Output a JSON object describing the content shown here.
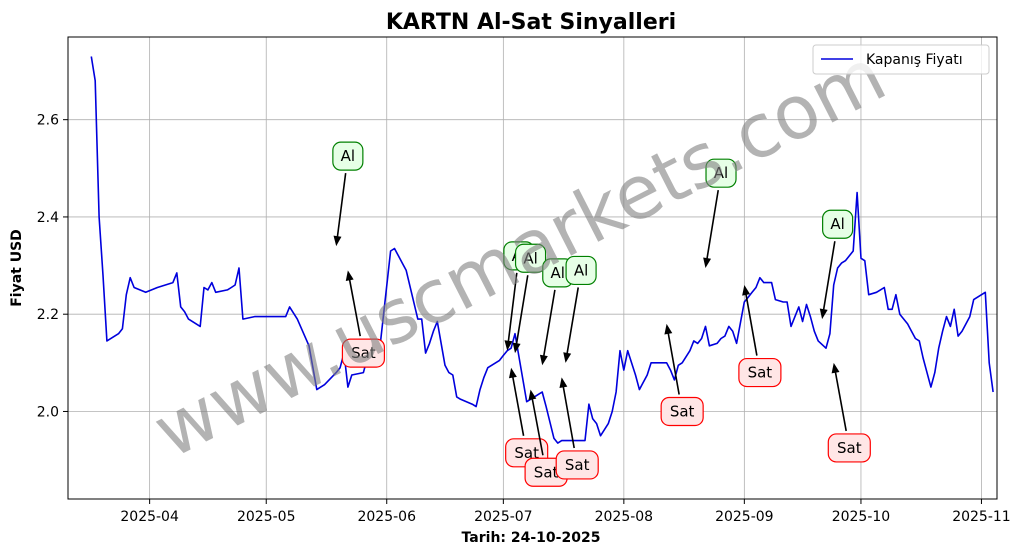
{
  "chart_data": {
    "type": "line",
    "title": "KARTN Al-Sat Sinyalleri",
    "xlabel": "Tarih: 24-10-2025",
    "ylabel": "Fiyat USD",
    "xlim": [
      "2025-03-11",
      "2025-11-05"
    ],
    "ylim": [
      1.82,
      2.77
    ],
    "x_ticks": [
      "2025-04-01",
      "2025-05-01",
      "2025-06-01",
      "2025-07-01",
      "2025-08-01",
      "2025-09-01",
      "2025-10-01",
      "2025-11-01"
    ],
    "x_tick_labels": [
      "2025-04",
      "2025-05",
      "2025-06",
      "2025-07",
      "2025-08",
      "2025-09",
      "2025-10",
      "2025-11"
    ],
    "y_ticks": [
      2.0,
      2.2,
      2.4,
      2.6
    ],
    "y_tick_labels": [
      "2.0",
      "2.2",
      "2.4",
      "2.6"
    ],
    "grid": true,
    "legend_position": "top-right",
    "watermark": "www.uscmarkets.com",
    "series": [
      {
        "name": "Kapanış Fiyatı",
        "color": "#0000dd",
        "points": [
          [
            "2025-03-17",
            2.73
          ],
          [
            "2025-03-18",
            2.68
          ],
          [
            "2025-03-19",
            2.4
          ],
          [
            "2025-03-20",
            2.28
          ],
          [
            "2025-03-21",
            2.145
          ],
          [
            "2025-03-24",
            2.16
          ],
          [
            "2025-03-25",
            2.17
          ],
          [
            "2025-03-26",
            2.24
          ],
          [
            "2025-03-27",
            2.275
          ],
          [
            "2025-03-28",
            2.255
          ],
          [
            "2025-03-31",
            2.245
          ],
          [
            "2025-04-03",
            2.255
          ],
          [
            "2025-04-07",
            2.265
          ],
          [
            "2025-04-08",
            2.285
          ],
          [
            "2025-04-09",
            2.215
          ],
          [
            "2025-04-10",
            2.205
          ],
          [
            "2025-04-11",
            2.19
          ],
          [
            "2025-04-14",
            2.175
          ],
          [
            "2025-04-15",
            2.255
          ],
          [
            "2025-04-16",
            2.25
          ],
          [
            "2025-04-17",
            2.265
          ],
          [
            "2025-04-18",
            2.245
          ],
          [
            "2025-04-21",
            2.25
          ],
          [
            "2025-04-22",
            2.255
          ],
          [
            "2025-04-23",
            2.26
          ],
          [
            "2025-04-24",
            2.295
          ],
          [
            "2025-04-25",
            2.19
          ],
          [
            "2025-04-28",
            2.195
          ],
          [
            "2025-05-01",
            2.195
          ],
          [
            "2025-05-02",
            2.195
          ],
          [
            "2025-05-05",
            2.195
          ],
          [
            "2025-05-06",
            2.195
          ],
          [
            "2025-05-07",
            2.215
          ],
          [
            "2025-05-09",
            2.19
          ],
          [
            "2025-05-12",
            2.135
          ],
          [
            "2025-05-13",
            2.09
          ],
          [
            "2025-05-14",
            2.045
          ],
          [
            "2025-05-15",
            2.05
          ],
          [
            "2025-05-16",
            2.055
          ],
          [
            "2025-05-19",
            2.08
          ],
          [
            "2025-05-20",
            2.09
          ],
          [
            "2025-05-21",
            2.12
          ],
          [
            "2025-05-22",
            2.05
          ],
          [
            "2025-05-23",
            2.075
          ],
          [
            "2025-05-26",
            2.08
          ],
          [
            "2025-05-27",
            2.11
          ],
          [
            "2025-05-28",
            2.14
          ],
          [
            "2025-05-29",
            2.135
          ],
          [
            "2025-05-30",
            2.115
          ],
          [
            "2025-06-02",
            2.33
          ],
          [
            "2025-06-03",
            2.335
          ],
          [
            "2025-06-04",
            2.32
          ],
          [
            "2025-06-05",
            2.305
          ],
          [
            "2025-06-06",
            2.29
          ],
          [
            "2025-06-09",
            2.19
          ],
          [
            "2025-06-10",
            2.19
          ],
          [
            "2025-06-11",
            2.12
          ],
          [
            "2025-06-12",
            2.14
          ],
          [
            "2025-06-13",
            2.165
          ],
          [
            "2025-06-14",
            2.185
          ],
          [
            "2025-06-16",
            2.095
          ],
          [
            "2025-06-17",
            2.08
          ],
          [
            "2025-06-18",
            2.075
          ],
          [
            "2025-06-19",
            2.03
          ],
          [
            "2025-06-20",
            2.025
          ],
          [
            "2025-06-23",
            2.015
          ],
          [
            "2025-06-24",
            2.01
          ],
          [
            "2025-06-25",
            2.045
          ],
          [
            "2025-06-26",
            2.07
          ],
          [
            "2025-06-27",
            2.09
          ],
          [
            "2025-06-30",
            2.105
          ],
          [
            "2025-07-01",
            2.115
          ],
          [
            "2025-07-02",
            2.125
          ],
          [
            "2025-07-03",
            2.13
          ],
          [
            "2025-07-04",
            2.16
          ],
          [
            "2025-07-07",
            2.02
          ],
          [
            "2025-07-08",
            2.025
          ],
          [
            "2025-07-10",
            2.035
          ],
          [
            "2025-07-11",
            2.04
          ],
          [
            "2025-07-12",
            2.01
          ],
          [
            "2025-07-14",
            1.945
          ],
          [
            "2025-07-15",
            1.935
          ],
          [
            "2025-07-16",
            1.94
          ],
          [
            "2025-07-17",
            1.94
          ],
          [
            "2025-07-18",
            1.94
          ],
          [
            "2025-07-21",
            1.94
          ],
          [
            "2025-07-22",
            1.94
          ],
          [
            "2025-07-23",
            2.015
          ],
          [
            "2025-07-24",
            1.985
          ],
          [
            "2025-07-25",
            1.975
          ],
          [
            "2025-07-26",
            1.95
          ],
          [
            "2025-07-28",
            1.975
          ],
          [
            "2025-07-29",
            2.0
          ],
          [
            "2025-07-30",
            2.04
          ],
          [
            "2025-07-31",
            2.125
          ],
          [
            "2025-08-01",
            2.085
          ],
          [
            "2025-08-02",
            2.125
          ],
          [
            "2025-08-04",
            2.075
          ],
          [
            "2025-08-05",
            2.045
          ],
          [
            "2025-08-06",
            2.06
          ],
          [
            "2025-08-07",
            2.075
          ],
          [
            "2025-08-08",
            2.1
          ],
          [
            "2025-08-11",
            2.1
          ],
          [
            "2025-08-12",
            2.1
          ],
          [
            "2025-08-13",
            2.085
          ],
          [
            "2025-08-14",
            2.065
          ],
          [
            "2025-08-15",
            2.095
          ],
          [
            "2025-08-16",
            2.1
          ],
          [
            "2025-08-18",
            2.125
          ],
          [
            "2025-08-19",
            2.145
          ],
          [
            "2025-08-20",
            2.14
          ],
          [
            "2025-08-21",
            2.15
          ],
          [
            "2025-08-22",
            2.175
          ],
          [
            "2025-08-23",
            2.135
          ],
          [
            "2025-08-25",
            2.14
          ],
          [
            "2025-08-26",
            2.15
          ],
          [
            "2025-08-27",
            2.155
          ],
          [
            "2025-08-28",
            2.175
          ],
          [
            "2025-08-29",
            2.165
          ],
          [
            "2025-08-30",
            2.14
          ],
          [
            "2025-09-01",
            2.225
          ],
          [
            "2025-09-02",
            2.235
          ],
          [
            "2025-09-03",
            2.245
          ],
          [
            "2025-09-04",
            2.255
          ],
          [
            "2025-09-05",
            2.275
          ],
          [
            "2025-09-06",
            2.265
          ],
          [
            "2025-09-08",
            2.265
          ],
          [
            "2025-09-09",
            2.23
          ],
          [
            "2025-09-11",
            2.225
          ],
          [
            "2025-09-12",
            2.225
          ],
          [
            "2025-09-13",
            2.175
          ],
          [
            "2025-09-15",
            2.215
          ],
          [
            "2025-09-16",
            2.185
          ],
          [
            "2025-09-17",
            2.22
          ],
          [
            "2025-09-18",
            2.195
          ],
          [
            "2025-09-19",
            2.165
          ],
          [
            "2025-09-20",
            2.145
          ],
          [
            "2025-09-22",
            2.13
          ],
          [
            "2025-09-23",
            2.16
          ],
          [
            "2025-09-24",
            2.26
          ],
          [
            "2025-09-25",
            2.295
          ],
          [
            "2025-09-26",
            2.305
          ],
          [
            "2025-09-27",
            2.31
          ],
          [
            "2025-09-29",
            2.33
          ],
          [
            "2025-09-30",
            2.45
          ],
          [
            "2025-10-01",
            2.315
          ],
          [
            "2025-10-02",
            2.31
          ],
          [
            "2025-10-03",
            2.24
          ],
          [
            "2025-10-05",
            2.245
          ],
          [
            "2025-10-06",
            2.25
          ],
          [
            "2025-10-07",
            2.255
          ],
          [
            "2025-10-08",
            2.21
          ],
          [
            "2025-10-09",
            2.21
          ],
          [
            "2025-10-10",
            2.24
          ],
          [
            "2025-10-11",
            2.2
          ],
          [
            "2025-10-13",
            2.18
          ],
          [
            "2025-10-14",
            2.165
          ],
          [
            "2025-10-15",
            2.15
          ],
          [
            "2025-10-16",
            2.145
          ],
          [
            "2025-10-17",
            2.11
          ],
          [
            "2025-10-18",
            2.08
          ],
          [
            "2025-10-19",
            2.05
          ],
          [
            "2025-10-20",
            2.08
          ],
          [
            "2025-10-21",
            2.13
          ],
          [
            "2025-10-22",
            2.165
          ],
          [
            "2025-10-23",
            2.195
          ],
          [
            "2025-10-24",
            2.175
          ],
          [
            "2025-10-25",
            2.21
          ],
          [
            "2025-10-26",
            2.155
          ],
          [
            "2025-10-27",
            2.165
          ],
          [
            "2025-10-29",
            2.195
          ],
          [
            "2025-10-30",
            2.23
          ],
          [
            "2025-11-01",
            2.24
          ],
          [
            "2025-11-02",
            2.245
          ],
          [
            "2025-11-03",
            2.1
          ],
          [
            "2025-11-04",
            2.04
          ]
        ]
      }
    ],
    "annotations": [
      {
        "text": "Al",
        "kind": "buy",
        "point": [
          "2025-05-19",
          2.34
        ],
        "label_at": [
          "2025-05-22",
          2.525
        ]
      },
      {
        "text": "Sat",
        "kind": "sell",
        "point": [
          "2025-05-22",
          2.29
        ],
        "label_at": [
          "2025-05-26",
          2.12
        ]
      },
      {
        "text": "Al",
        "kind": "buy",
        "point": [
          "2025-07-02",
          2.125
        ],
        "label_at": [
          "2025-07-05",
          2.32
        ]
      },
      {
        "text": "Al",
        "kind": "buy",
        "point": [
          "2025-07-04",
          2.12
        ],
        "label_at": [
          "2025-07-08",
          2.315
        ]
      },
      {
        "text": "Sat",
        "kind": "sell",
        "point": [
          "2025-07-03",
          2.09
        ],
        "label_at": [
          "2025-07-07",
          1.915
        ]
      },
      {
        "text": "Sat",
        "kind": "sell",
        "point": [
          "2025-07-08",
          2.045
        ],
        "label_at": [
          "2025-07-12",
          1.875
        ]
      },
      {
        "text": "Al",
        "kind": "buy",
        "point": [
          "2025-07-11",
          2.095
        ],
        "label_at": [
          "2025-07-15",
          2.285
        ]
      },
      {
        "text": "Sat",
        "kind": "sell",
        "point": [
          "2025-07-16",
          2.07
        ],
        "label_at": [
          "2025-07-20",
          1.89
        ]
      },
      {
        "text": "Al",
        "kind": "buy",
        "point": [
          "2025-07-17",
          2.1
        ],
        "label_at": [
          "2025-07-21",
          2.29
        ]
      },
      {
        "text": "Sat",
        "kind": "sell",
        "point": [
          "2025-08-12",
          2.18
        ],
        "label_at": [
          "2025-08-16",
          2.0
        ]
      },
      {
        "text": "Al",
        "kind": "buy",
        "point": [
          "2025-08-22",
          2.295
        ],
        "label_at": [
          "2025-08-26",
          2.49
        ]
      },
      {
        "text": "Sat",
        "kind": "sell",
        "point": [
          "2025-09-01",
          2.26
        ],
        "label_at": [
          "2025-09-05",
          2.08
        ]
      },
      {
        "text": "Al",
        "kind": "buy",
        "point": [
          "2025-09-21",
          2.19
        ],
        "label_at": [
          "2025-09-25",
          2.385
        ]
      },
      {
        "text": "Sat",
        "kind": "sell",
        "point": [
          "2025-09-24",
          2.1
        ],
        "label_at": [
          "2025-09-28",
          1.925
        ]
      }
    ]
  }
}
